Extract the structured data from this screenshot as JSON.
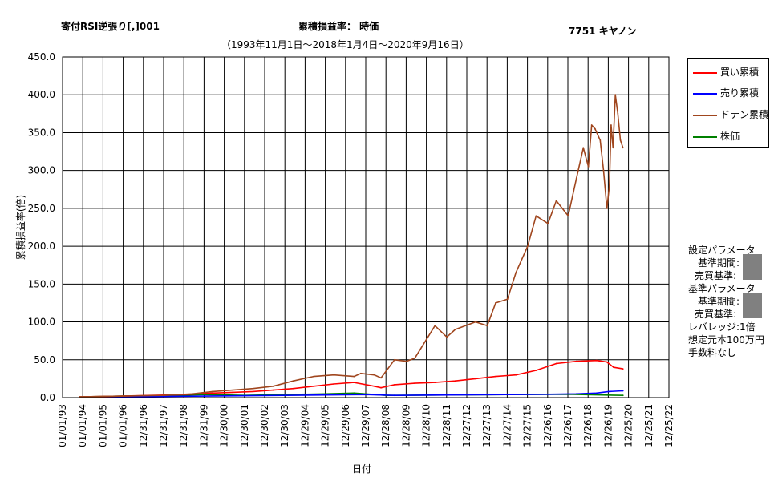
{
  "header": {
    "strategy": "寄付RSI逆張り[,]001",
    "metric": "累積損益率： 時価",
    "ticker": "7751 キヤノン",
    "period": "（1993年11月1日～2018年1月4日～2020年9月16日）"
  },
  "params": {
    "set_title": "設定パラメータ",
    "set_period": "基準期間:",
    "set_trade": "売買基準:",
    "base_title": "基準パラメータ",
    "base_period": "基準期間:",
    "base_trade": "売買基準:",
    "leverage": "レバレッジ:1倍",
    "capital": "想定元本100万円",
    "fee": "手数料なし"
  },
  "colors": {
    "buy": "#ff0000",
    "sell": "#0000ff",
    "doten": "#a0461e",
    "price": "#008000"
  },
  "chart_data": {
    "type": "line",
    "title": "累積損益率： 時価",
    "xlabel": "日付",
    "ylabel": "累積損益率(倍)",
    "ylim": [
      0,
      450
    ],
    "yticks": [
      "0.0",
      "50.0",
      "100.0",
      "150.0",
      "200.0",
      "250.0",
      "300.0",
      "350.0",
      "400.0",
      "450.0"
    ],
    "x_tick_labels": [
      "01/01/93",
      "01/01/94",
      "01/01/95",
      "01/01/96",
      "12/31/96",
      "12/31/97",
      "12/31/98",
      "12/31/99",
      "12/30/00",
      "12/30/01",
      "12/30/02",
      "12/30/03",
      "12/29/04",
      "12/29/05",
      "12/29/06",
      "12/29/07",
      "12/28/08",
      "12/28/09",
      "12/28/10",
      "12/28/11",
      "12/27/12",
      "12/27/13",
      "12/27/14",
      "12/27/15",
      "12/26/16",
      "12/26/17",
      "12/26/18",
      "12/26/19",
      "12/25/20",
      "12/25/21",
      "12/25/22"
    ],
    "x_range": [
      "1993-01-01",
      "2022-12-25"
    ],
    "grid": true,
    "legend_position": "right-top",
    "series": [
      {
        "name": "買い累積",
        "color": "#ff0000",
        "x": [
          "1993-11-01",
          "1996-01-01",
          "1999-01-01",
          "2000-06-01",
          "2001-06-01",
          "2002-06-01",
          "2003-06-01",
          "2004-06-01",
          "2005-06-01",
          "2006-06-01",
          "2007-06-01",
          "2008-06-01",
          "2008-10-01",
          "2009-06-01",
          "2010-06-01",
          "2011-06-01",
          "2012-06-01",
          "2013-06-01",
          "2014-06-01",
          "2015-06-01",
          "2016-06-01",
          "2017-06-01",
          "2018-06-01",
          "2019-06-01",
          "2019-12-01",
          "2020-04-01",
          "2020-09-16"
        ],
        "values": [
          1,
          2,
          4,
          6,
          7,
          8,
          10,
          12,
          15,
          18,
          20,
          15,
          13,
          17,
          19,
          20,
          22,
          25,
          28,
          30,
          36,
          45,
          48,
          49,
          47,
          40,
          38
        ]
      },
      {
        "name": "売り累積",
        "color": "#0000ff",
        "x": [
          "1993-11-01",
          "1996-01-01",
          "2000-01-01",
          "2004-01-01",
          "2008-01-01",
          "2009-06-01",
          "2012-01-01",
          "2015-01-01",
          "2017-01-01",
          "2018-06-01",
          "2019-06-01",
          "2020-01-01",
          "2020-09-16"
        ],
        "values": [
          0.5,
          1,
          2,
          3,
          4,
          3,
          3.5,
          4,
          4.5,
          5,
          6,
          8,
          9
        ]
      },
      {
        "name": "ドテン累積",
        "color": "#a0461e",
        "x": [
          "1993-11-01",
          "1996-01-01",
          "1998-01-01",
          "1999-06-01",
          "2000-06-01",
          "2001-06-01",
          "2002-06-01",
          "2003-06-01",
          "2004-06-01",
          "2005-06-01",
          "2006-06-01",
          "2007-06-01",
          "2007-10-01",
          "2008-06-01",
          "2008-10-01",
          "2009-06-01",
          "2010-01-01",
          "2010-06-01",
          "2011-06-01",
          "2012-01-01",
          "2012-06-01",
          "2013-06-01",
          "2014-01-01",
          "2014-06-01",
          "2015-01-01",
          "2015-06-01",
          "2016-01-01",
          "2016-06-01",
          "2017-01-01",
          "2017-06-01",
          "2018-01-01",
          "2018-06-01",
          "2018-10-01",
          "2019-01-01",
          "2019-03-01",
          "2019-05-01",
          "2019-08-01",
          "2019-10-01",
          "2019-12-01",
          "2020-01-15",
          "2020-02-15",
          "2020-03-20",
          "2020-05-01",
          "2020-06-15",
          "2020-08-01",
          "2020-09-16"
        ],
        "values": [
          1,
          2,
          3,
          5,
          8,
          10,
          12,
          15,
          22,
          28,
          30,
          28,
          32,
          30,
          26,
          50,
          48,
          52,
          95,
          80,
          90,
          100,
          95,
          125,
          130,
          165,
          200,
          240,
          230,
          260,
          240,
          290,
          330,
          305,
          360,
          355,
          340,
          300,
          250,
          280,
          360,
          330,
          400,
          375,
          340,
          330
        ]
      },
      {
        "name": "株価",
        "color": "#008000",
        "x": [
          "1993-11-01",
          "1996-01-01",
          "1998-01-01",
          "2000-01-01",
          "2002-01-01",
          "2004-01-01",
          "2006-01-01",
          "2007-06-01",
          "2009-01-01",
          "2012-01-01",
          "2015-01-01",
          "2018-01-01",
          "2020-09-16"
        ],
        "values": [
          1,
          2,
          2.5,
          4,
          3,
          4,
          5,
          6,
          3,
          3.5,
          4,
          4.5,
          3
        ]
      }
    ]
  }
}
